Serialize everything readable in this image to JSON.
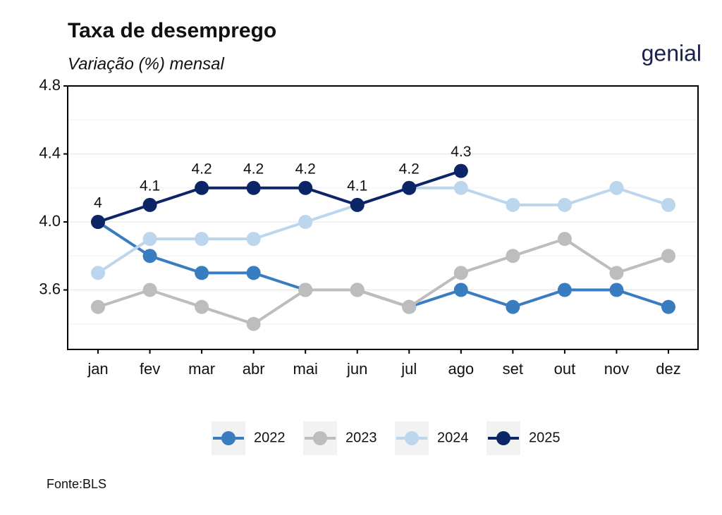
{
  "chart_data": {
    "type": "line",
    "title": "Taxa de desemprego",
    "subtitle": "Variação (%) mensal",
    "logo": "genial",
    "source": "Fonte:BLS",
    "categories": [
      "jan",
      "fev",
      "mar",
      "abr",
      "mai",
      "jun",
      "jul",
      "ago",
      "set",
      "out",
      "nov",
      "dez"
    ],
    "series": [
      {
        "name": "2022",
        "color": "#3a7cc0",
        "values": [
          4.0,
          3.8,
          3.7,
          3.7,
          3.6,
          3.6,
          3.5,
          3.6,
          3.5,
          3.6,
          3.6,
          3.5
        ]
      },
      {
        "name": "2023",
        "color": "#bdbdbd",
        "values": [
          3.5,
          3.6,
          3.5,
          3.4,
          3.6,
          3.6,
          3.5,
          3.7,
          3.8,
          3.9,
          3.7,
          3.8
        ]
      },
      {
        "name": "2024",
        "color": "#bcd6ee",
        "values": [
          3.7,
          3.9,
          3.9,
          3.9,
          4.0,
          4.1,
          4.2,
          4.2,
          4.1,
          4.1,
          4.2,
          4.1
        ]
      },
      {
        "name": "2025",
        "color": "#0b2566",
        "values": [
          4,
          4.1,
          4.2,
          4.2,
          4.2,
          4.1,
          4.2,
          4.3,
          null,
          null,
          null,
          null
        ],
        "labels": true
      }
    ],
    "ylim": [
      3.25,
      4.8
    ],
    "yticks": [
      3.6,
      {
        "value": 4,
        "label": "4.0"
      },
      4.4,
      4.8
    ],
    "yminor": [
      3.4,
      3.8,
      4.2,
      4.6
    ],
    "grid": true,
    "legend": "bottom"
  }
}
